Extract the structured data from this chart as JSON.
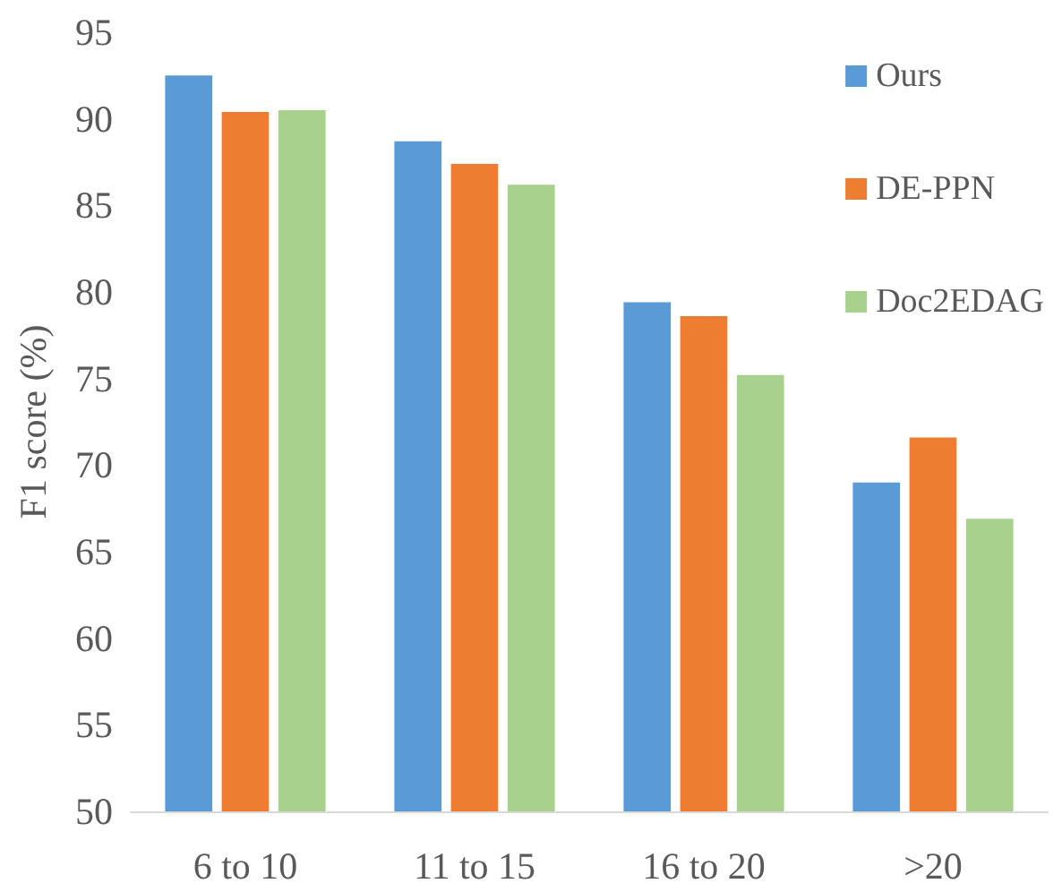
{
  "chart_data": {
    "type": "bar",
    "ylabel": "F1 score (%)",
    "categories": [
      "6 to 10",
      "11 to 15",
      "16 to 20",
      ">20"
    ],
    "series": [
      {
        "name": "Ours",
        "color": "#5b9bd5",
        "values": [
          92.5,
          88.7,
          79.4,
          69.0
        ]
      },
      {
        "name": "DE-PPN",
        "color": "#ed7d31",
        "values": [
          90.4,
          87.4,
          78.6,
          71.6
        ]
      },
      {
        "name": "Doc2EDAG",
        "color": "#a9d18e",
        "values": [
          90.5,
          86.2,
          75.2,
          66.9
        ]
      }
    ],
    "ylim": [
      50,
      95
    ],
    "yticks": [
      50,
      55,
      60,
      65,
      70,
      75,
      80,
      85,
      90,
      95
    ],
    "grid": false,
    "legend": "top right"
  }
}
